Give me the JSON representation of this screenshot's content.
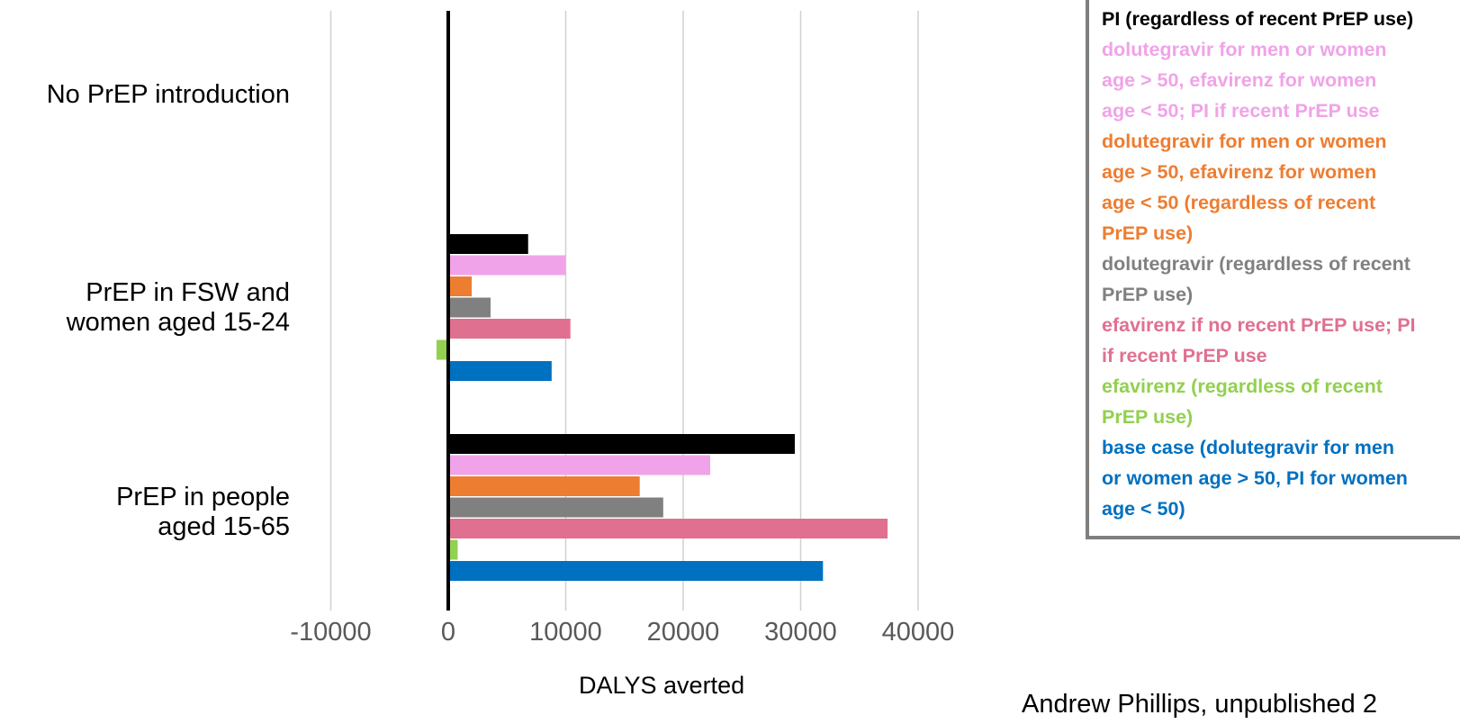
{
  "chart_data": {
    "type": "bar",
    "orientation": "horizontal",
    "xlabel": "DALYS averted",
    "xlim": [
      -10000,
      40000
    ],
    "xticks": [
      "-10000",
      "0",
      "10000",
      "20000",
      "30000",
      "40000"
    ],
    "grid": true,
    "legend_position": "right",
    "categories": [
      "No PrEP introduction",
      "PrEP in FSW and\nwomen aged 15-24",
      "PrEP in people\naged 15-65"
    ],
    "series": [
      {
        "name": "PI (regardless of recent PrEP use)",
        "color": "#000000",
        "values": [
          0,
          6800,
          29500
        ]
      },
      {
        "name": "dolutegravir for men or women age > 50, efavirenz for women age < 50; PI if recent PrEP use",
        "color": "#f0a3e8",
        "values": [
          0,
          10000,
          22300
        ]
      },
      {
        "name": "dolutegravir for men or women age > 50, efavirenz for women age < 50 (regardless of recent PrEP use)",
        "color": "#ed7d31",
        "values": [
          0,
          2000,
          16300
        ]
      },
      {
        "name": "dolutegravir (regardless of recent PrEP use)",
        "color": "#808080",
        "values": [
          0,
          3600,
          18300
        ]
      },
      {
        "name": "efavirenz if no recent PrEP use; PI if recent PrEP use",
        "color": "#e07090",
        "values": [
          0,
          10400,
          37400
        ]
      },
      {
        "name": "efavirenz (regardless of recent PrEP use)",
        "color": "#92d050",
        "values": [
          0,
          -1000,
          800
        ]
      },
      {
        "name": "base case (dolutegravir for men or women age > 50, PI for women age < 50)",
        "color": "#0070c0",
        "values": [
          0,
          8800,
          31900
        ]
      }
    ]
  },
  "legend_lines": [
    "PI (regardless of recent PrEP use)",
    "dolutegravir for men or women\nage > 50, efavirenz for women\nage < 50; PI if recent PrEP use",
    "dolutegravir for men or women\nage > 50, efavirenz for women\nage < 50 (regardless of recent\nPrEP use)",
    "dolutegravir (regardless of recent\nPrEP use)",
    "efavirenz if no recent PrEP use; PI\nif recent PrEP use",
    "efavirenz (regardless of recent\nPrEP use)",
    "base case (dolutegravir for men\nor women age > 50, PI for women\nage < 50)"
  ],
  "source_note": "Andrew Phillips, unpublished 2"
}
